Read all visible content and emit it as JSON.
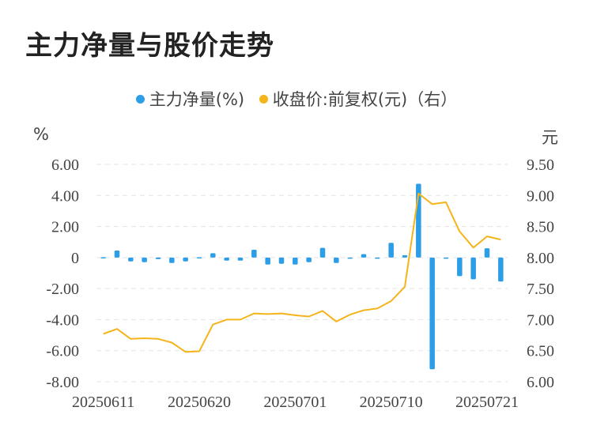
{
  "chart_data": {
    "type": "bar+line",
    "title": "主力净量与股价走势",
    "legend": [
      {
        "name": "主力净量(%)",
        "color": "#2c9ee8"
      },
      {
        "name": "收盘价:前复权(元)（右）",
        "color": "#f5b41a"
      }
    ],
    "left_unit": "%",
    "right_unit": "元",
    "left_ticks": [
      "6.00",
      "4.00",
      "2.00",
      "0",
      "-2.00",
      "-4.00",
      "-6.00",
      "-8.00"
    ],
    "right_ticks": [
      "9.50",
      "9.00",
      "8.50",
      "8.00",
      "7.50",
      "7.00",
      "6.50",
      "6.00"
    ],
    "left_range": [
      -8,
      6
    ],
    "right_range": [
      6,
      9.5
    ],
    "x_tick_labels": [
      "20250611",
      "20250620",
      "20250701",
      "20250710",
      "20250721"
    ],
    "x_tick_indices": [
      0,
      7,
      14,
      21,
      28
    ],
    "categories": [
      "20250611",
      "20250612",
      "20250613",
      "20250616",
      "20250617",
      "20250618",
      "20250619",
      "20250620",
      "20250623",
      "20250624",
      "20250625",
      "20250626",
      "20250627",
      "20250630",
      "20250701",
      "20250702",
      "20250703",
      "20250704",
      "20250707",
      "20250708",
      "20250709",
      "20250710",
      "20250711",
      "20250714",
      "20250715",
      "20250716",
      "20250717",
      "20250718",
      "20250721",
      "20250722"
    ],
    "series": [
      {
        "name": "主力净量(%)",
        "type": "bar",
        "values": [
          0.02,
          0.45,
          -0.25,
          -0.3,
          -0.1,
          -0.35,
          -0.25,
          0.02,
          0.28,
          -0.2,
          -0.2,
          0.5,
          -0.45,
          -0.4,
          -0.45,
          -0.3,
          0.62,
          -0.35,
          -0.05,
          0.22,
          -0.05,
          0.95,
          0.15,
          4.75,
          -7.2,
          -0.05,
          -1.2,
          -1.4,
          0.6,
          -1.55
        ]
      },
      {
        "name": "收盘价:前复权(元)（右）",
        "type": "line",
        "values": [
          6.77,
          6.85,
          6.69,
          6.7,
          6.69,
          6.63,
          6.48,
          6.49,
          6.92,
          7.0,
          7.0,
          7.1,
          7.09,
          7.1,
          7.07,
          7.05,
          7.14,
          6.97,
          7.08,
          7.15,
          7.18,
          7.3,
          7.53,
          9.03,
          8.86,
          8.89,
          8.42,
          8.16,
          8.34,
          8.29
        ]
      }
    ]
  }
}
